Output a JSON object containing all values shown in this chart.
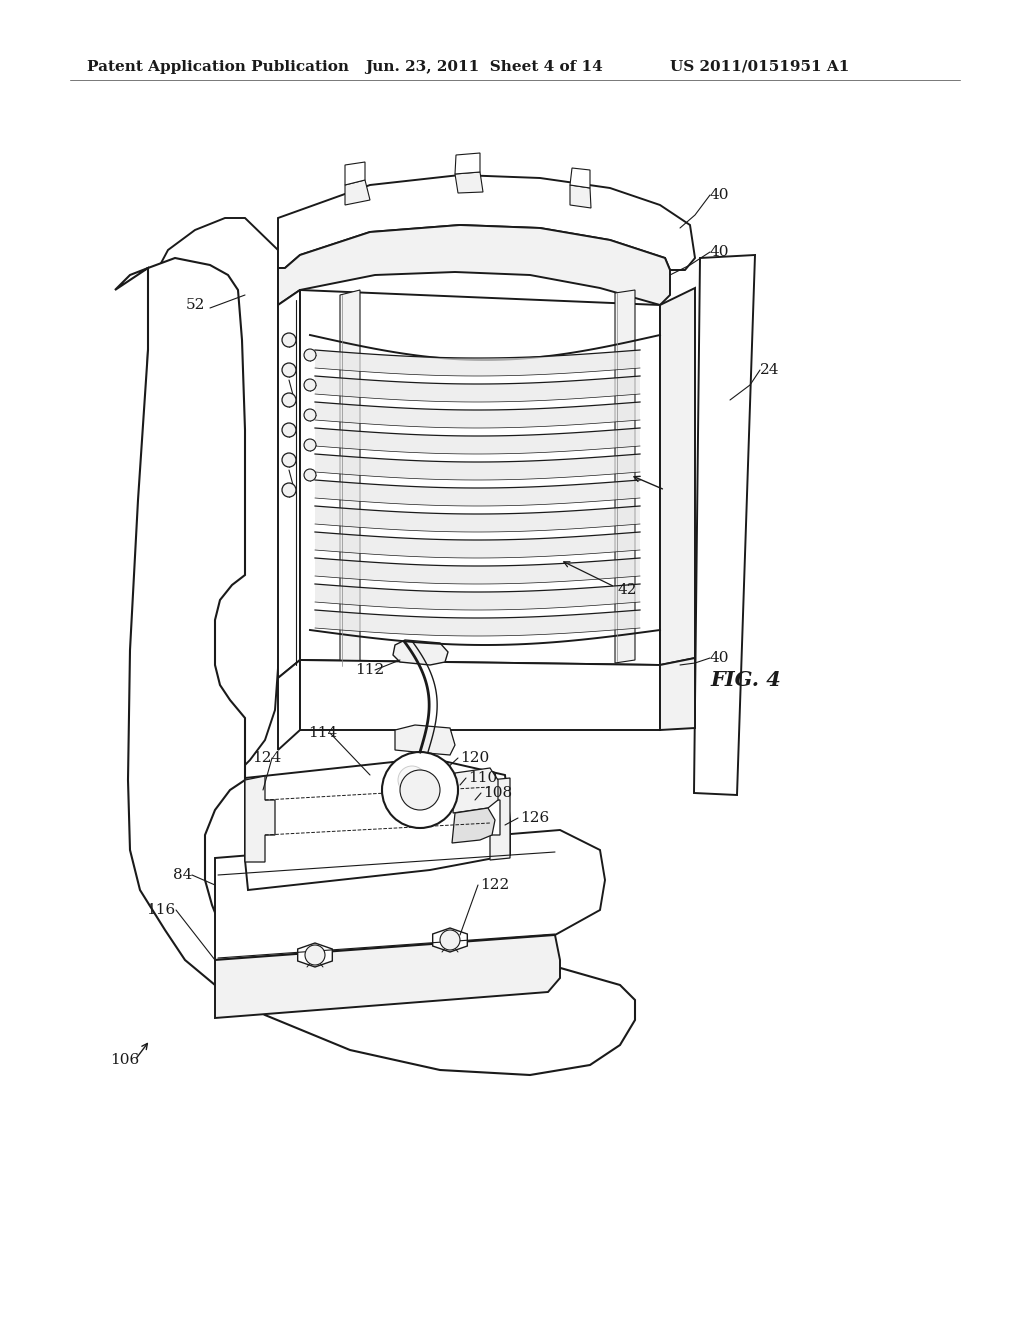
{
  "background_color": "#ffffff",
  "header_left": "Patent Application Publication",
  "header_center": "Jun. 23, 2011  Sheet 4 of 14",
  "header_right": "US 2011/0151951 A1",
  "figure_label": "FIG. 4",
  "line_color": "#1a1a1a",
  "line_width": 1.4,
  "header_fontsize": 11,
  "label_fontsize": 11,
  "fig_label_fontsize": 15,
  "fill_white": "#ffffff",
  "fill_light": "#f2f2f2",
  "fill_mid": "#e0e0e0",
  "fill_dark": "#c8c8c8"
}
